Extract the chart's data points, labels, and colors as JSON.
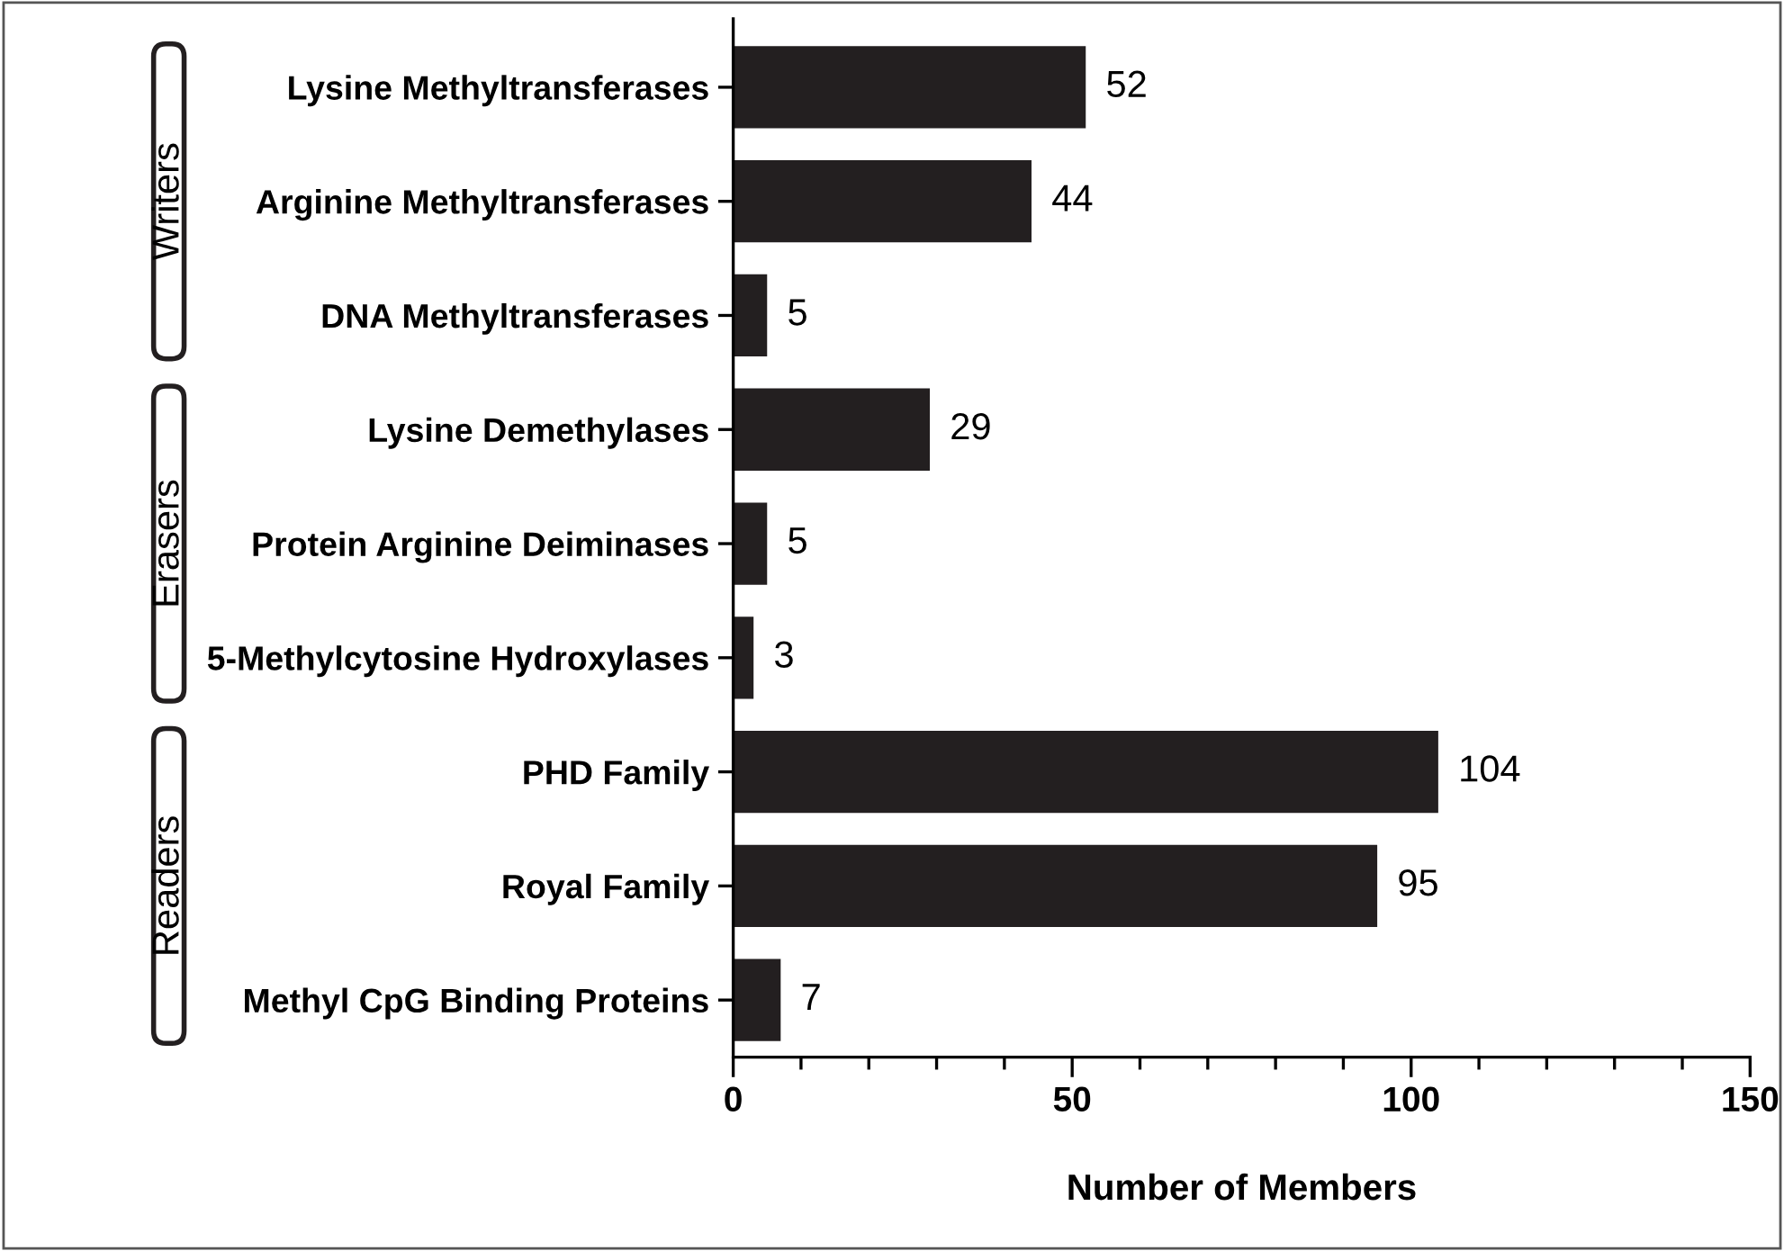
{
  "chart_data": {
    "type": "bar",
    "orientation": "horizontal",
    "xlabel": "Number of Members",
    "categories": [
      "Lysine Methyltransferases",
      "Arginine Methyltransferases",
      "DNA Methyltransferases",
      "Lysine Demethylases",
      "Protein Arginine Deiminases",
      "5-Methylcytosine Hydroxylases",
      "PHD Family",
      "Royal Family",
      "Methyl CpG Binding Proteins"
    ],
    "values": [
      52,
      44,
      5,
      29,
      5,
      3,
      104,
      95,
      7
    ],
    "color": "#231f20",
    "xlim": [
      0,
      150
    ],
    "xticks": [
      0,
      {
        "value": 10,
        "label": null
      },
      {
        "value": 20,
        "label": null
      },
      {
        "value": 30,
        "label": null
      },
      {
        "value": 40,
        "label": null
      },
      50,
      {
        "value": 60,
        "label": null
      },
      {
        "value": 70,
        "label": null
      },
      {
        "value": 80,
        "label": null
      },
      {
        "value": 90,
        "label": null
      },
      100,
      {
        "value": 110,
        "label": null
      },
      {
        "value": 120,
        "label": null
      },
      {
        "value": 130,
        "label": null
      },
      {
        "value": 140,
        "label": null
      },
      150
    ],
    "data_labels": true,
    "grid": false,
    "legend": false,
    "annotations": [
      "Writers",
      "Erasers",
      "Readers"
    ]
  }
}
